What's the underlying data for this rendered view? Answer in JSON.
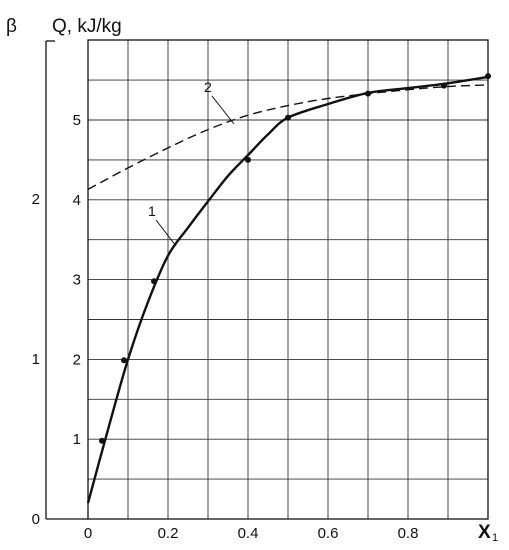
{
  "chart_data": {
    "type": "line",
    "xlabel": "X",
    "xlabel_subscript": "1",
    "ylabel": "Q, kJ/kg",
    "ylabel2": "β",
    "xlim": [
      0,
      1.0
    ],
    "ylim": [
      0,
      5.5
    ],
    "ylim2": [
      0,
      3.125
    ],
    "grid": true,
    "x_ticks": [
      {
        "value": 0,
        "label": "0"
      },
      {
        "value": 0.2,
        "label": "0.2"
      },
      {
        "value": 0.4,
        "label": "0.4"
      },
      {
        "value": 0.6,
        "label": "0.6"
      },
      {
        "value": 0.8,
        "label": "0.8"
      }
    ],
    "y_ticks": [
      {
        "value": 1,
        "label": "1"
      },
      {
        "value": 2,
        "label": "2"
      },
      {
        "value": 3,
        "label": "3"
      },
      {
        "value": 4,
        "label": "4"
      },
      {
        "value": 5,
        "label": "5"
      }
    ],
    "y2_ticks": [
      {
        "value": 0,
        "label": "0"
      },
      {
        "value": 1,
        "label": "1"
      },
      {
        "value": 2,
        "label": "2"
      }
    ],
    "series": [
      {
        "name": "1",
        "style": "solid",
        "x": [
          0,
          0.05,
          0.1,
          0.15,
          0.2,
          0.25,
          0.3,
          0.35,
          0.4,
          0.45,
          0.5,
          0.6,
          0.7,
          0.8,
          0.9,
          1.0
        ],
        "y": [
          0.2,
          1.12,
          2.0,
          2.72,
          3.3,
          3.65,
          3.98,
          4.3,
          4.56,
          4.82,
          5.03,
          5.2,
          5.34,
          5.4,
          5.46,
          5.54
        ],
        "points": {
          "x": [
            0.035,
            0.09,
            0.165,
            0.4,
            0.5,
            0.7,
            0.89,
            1.0
          ],
          "y": [
            0.98,
            1.99,
            2.98,
            4.5,
            5.03,
            5.33,
            5.43,
            5.55
          ]
        }
      },
      {
        "name": "2",
        "style": "dashed",
        "x": [
          0,
          0.1,
          0.2,
          0.3,
          0.4,
          0.5,
          0.6,
          0.7,
          0.8,
          0.9,
          1.0
        ],
        "y": [
          4.13,
          4.4,
          4.65,
          4.88,
          5.06,
          5.18,
          5.27,
          5.33,
          5.38,
          5.42,
          5.44
        ]
      }
    ]
  }
}
